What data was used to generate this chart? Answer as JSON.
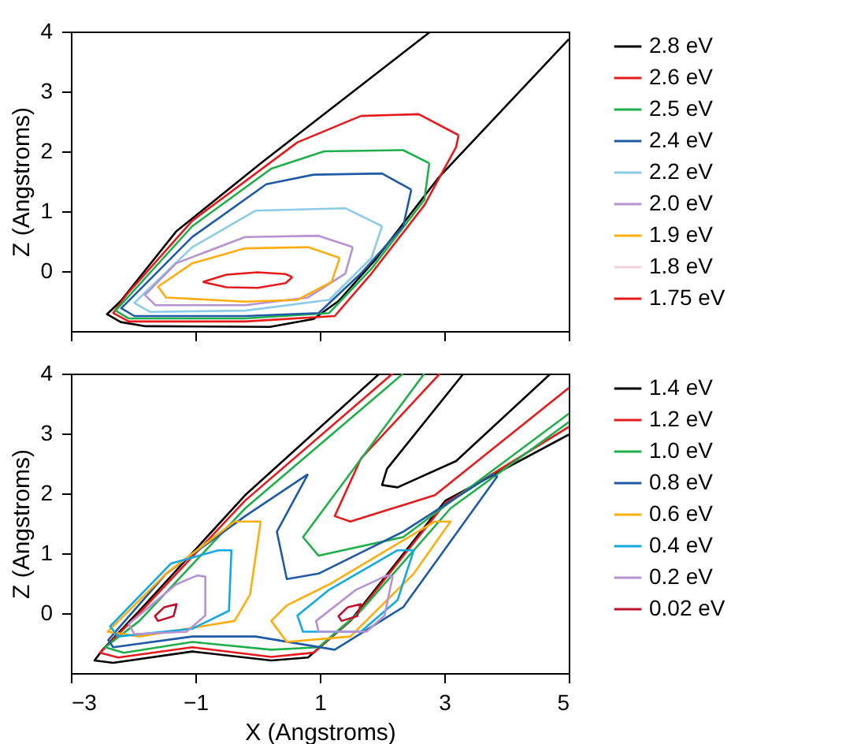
{
  "chart_data": [
    {
      "type": "line",
      "ylabel": "Z (Angstroms)",
      "xlim": [
        -3,
        5
      ],
      "xticks": [
        -3,
        -1,
        1,
        3,
        5
      ],
      "ylim": [
        -1,
        4
      ],
      "yticks": [
        0,
        1,
        2,
        3,
        4
      ],
      "tick_labels": "y",
      "legend": "right",
      "series": [
        {
          "name": "2.8 eV",
          "color": "#000000",
          "x": [
            2.78,
            0.05,
            -1.31,
            -2.2,
            -2.42,
            -2.2,
            -1.8,
            0.2,
            0.9,
            1.3,
            1.9,
            2.9,
            5
          ],
          "values": [
            4,
            1.8,
            0.66,
            -0.5,
            -0.72,
            -0.85,
            -0.92,
            -0.93,
            -0.8,
            -0.5,
            0.2,
            1.55,
            3.87
          ]
        },
        {
          "name": "2.6 eV",
          "color": "#e41a1c",
          "x": [
            1.66,
            2.59,
            3.23,
            null,
            3.23,
            3.19,
            2.68,
            1.83,
            1.24,
            -0.2,
            -2.07,
            -2.32,
            -2.11,
            -1.05,
            0.64,
            1.66
          ],
          "values": [
            2.59,
            2.62,
            2.27,
            null,
            2.27,
            2.07,
            1.1,
            -0.04,
            -0.75,
            -0.84,
            -0.84,
            -0.7,
            -0.4,
            0.84,
            2.15,
            2.59
          ]
        },
        {
          "name": "2.5 eV",
          "color": "#1faf4a",
          "x": [
            1.07,
            2.34,
            2.76,
            null,
            2.76,
            2.68,
            1.83,
            1.15,
            -0.2,
            -2.07,
            -2.28,
            -1.05,
            0.22,
            1.07
          ],
          "values": [
            2.0,
            2.02,
            1.8,
            null,
            1.8,
            1.19,
            0.04,
            -0.7,
            -0.79,
            -0.79,
            -0.66,
            0.75,
            1.71,
            2.0
          ]
        },
        {
          "name": "2.4 eV",
          "color": "#1f5aa6",
          "x": [
            0.9,
            2.0,
            2.47,
            null,
            2.47,
            2.34,
            1.66,
            0.98,
            -0.2,
            -1.98,
            -2.19,
            -1.05,
            0.14,
            0.9
          ],
          "values": [
            1.61,
            1.63,
            1.36,
            null,
            1.36,
            0.75,
            -0.04,
            -0.7,
            -0.75,
            -0.75,
            -0.62,
            0.57,
            1.45,
            1.61
          ]
        },
        {
          "name": "2.2 eV",
          "color": "#8ccbe6",
          "x": [
            -0.03,
            1.41,
            2.0,
            null,
            2.0,
            1.83,
            1.15,
            -0.2,
            -1.73,
            -1.98,
            -1.05,
            -0.03
          ],
          "values": [
            1.01,
            1.05,
            0.75,
            null,
            0.75,
            0.22,
            -0.48,
            -0.66,
            -0.68,
            -0.53,
            0.4,
            1.01
          ]
        },
        {
          "name": "2.0 eV",
          "color": "#b592d1",
          "x": [
            -0.2,
            0.98,
            1.53,
            null,
            1.53,
            1.41,
            0.81,
            -0.2,
            -1.64,
            -1.81,
            -1.31,
            -0.2
          ],
          "values": [
            0.57,
            0.59,
            0.4,
            null,
            0.4,
            -0.04,
            -0.44,
            -0.57,
            -0.57,
            -0.4,
            0.13,
            0.57
          ]
        },
        {
          "name": "1.9 eV",
          "color": "#ffac0f",
          "x": [
            -0.2,
            0.81,
            1.32,
            null,
            1.32,
            1.19,
            0.64,
            -0.2,
            -1.47,
            -1.6,
            -1.05,
            -0.2
          ],
          "values": [
            0.38,
            0.4,
            0.22,
            null,
            0.22,
            -0.18,
            -0.48,
            -0.51,
            -0.44,
            -0.26,
            0.13,
            0.38
          ]
        },
        {
          "name": "1.8 eV",
          "color": "#f0d3dc"
        },
        {
          "name": "1.75 eV",
          "color": "#e41a1c",
          "x": [
            -0.88,
            -0.5,
            0,
            0.45,
            0.56,
            null,
            0.56,
            0.45,
            0,
            -0.5,
            -0.88
          ],
          "values": [
            -0.18,
            -0.06,
            -0.02,
            -0.05,
            -0.1,
            null,
            -0.1,
            -0.2,
            -0.28,
            -0.27,
            -0.18
          ]
        }
      ]
    },
    {
      "type": "line",
      "xlabel": "X (Angstroms)",
      "ylabel": "Z (Angstroms)",
      "xlim": [
        -3,
        5
      ],
      "xticks": [
        -3,
        -1,
        1,
        3,
        5
      ],
      "ylim": [
        -1,
        4
      ],
      "yticks": [
        0,
        1,
        2,
        3,
        4
      ],
      "legend": "right",
      "series": [
        {
          "name": "1.4 eV",
          "color": "#000000",
          "x": [
            1.96,
            -0.2,
            -1.9,
            -2.49,
            -2.62,
            -2.32,
            -1.05,
            0.22,
            0.81,
            1.49,
            3.02,
            5,
            null,
            3.31,
            2.08,
            2.0,
            2.25,
            3.19,
            4.71
          ],
          "values": [
            4,
            1.97,
            0.04,
            -0.61,
            -0.79,
            -0.83,
            -0.64,
            -0.79,
            -0.74,
            -0.13,
            1.88,
            2.98,
            null,
            4,
            2.41,
            2.14,
            2.1,
            2.54,
            4
          ]
        },
        {
          "name": "1.2 eV",
          "color": "#e41a1c",
          "x": [
            2.17,
            -0.2,
            -1.9,
            -2.53,
            -2.24,
            -1.05,
            0.22,
            0.9,
            1.58,
            3.02,
            5,
            null,
            2.93,
            1.66,
            1.24,
            1.49,
            2.85,
            5
          ],
          "values": [
            4,
            1.88,
            0,
            -0.66,
            -0.74,
            -0.57,
            -0.73,
            -0.66,
            -0.04,
            1.84,
            3.11,
            null,
            4,
            2.58,
            1.62,
            1.53,
            1.97,
            3.76
          ]
        },
        {
          "name": "1.0 eV",
          "color": "#1faf4a",
          "x": [
            2.34,
            -0.2,
            -1.9,
            -2.45,
            -2.15,
            -1.05,
            0.22,
            0.98,
            1.66,
            3.1,
            5,
            null,
            2.68,
            0.73,
            0.98,
            2.34,
            5
          ],
          "values": [
            4,
            1.75,
            -0.13,
            -0.57,
            -0.66,
            -0.48,
            -0.61,
            -0.57,
            0.04,
            1.75,
            3.19,
            null,
            4,
            1.27,
            0.96,
            1.27,
            3.33
          ]
        },
        {
          "name": "0.8 eV",
          "color": "#1f5aa6",
          "x": [
            0.81,
            0.31,
            0.47,
            0.98,
            2.34,
            3.78,
            null,
            3.78,
            3.85,
            2.34,
            1.24,
            -0.03,
            -1.05,
            -2.32,
            -2.4,
            -1.47,
            -0.2,
            0.81
          ],
          "values": [
            2.32,
            1.36,
            0.57,
            0.66,
            1.36,
            2.32,
            null,
            2.32,
            2.28,
            0.1,
            -0.61,
            -0.39,
            -0.39,
            -0.57,
            -0.45,
            0.66,
            1.62,
            2.32
          ]
        },
        {
          "name": "0.6 eV",
          "color": "#ffac0f",
          "x": [
            0.05,
            -0.12,
            -0.37,
            -1.9,
            -2.41,
            -1.47,
            -0.37,
            0.05,
            null,
            3.1,
            2.51,
            1.49,
            0.47,
            0.22,
            0.47,
            1.15,
            2.85,
            3.1
          ],
          "values": [
            1.53,
            0.31,
            -0.13,
            -0.39,
            -0.31,
            0.66,
            1.53,
            1.53,
            null,
            1.53,
            0.66,
            -0.39,
            -0.48,
            -0.13,
            0.13,
            0.48,
            1.53,
            1.53
          ]
        },
        {
          "name": "0.4 eV",
          "color": "#12a9e0",
          "x": [
            -0.42,
            -0.46,
            -1.05,
            -2.24,
            -2.37,
            -1.39,
            -0.63,
            -0.42,
            null,
            2.51,
            2.25,
            1.66,
            0.73,
            0.64,
            1.15,
            2.25,
            2.51
          ],
          "values": [
            1.05,
            0.04,
            -0.26,
            -0.39,
            -0.22,
            0.83,
            1.05,
            1.05,
            null,
            1.05,
            0.22,
            -0.31,
            -0.31,
            -0.04,
            0.39,
            1.05,
            1.05
          ]
        },
        {
          "name": "0.2 eV",
          "color": "#b592d1",
          "x": [
            -0.84,
            -0.84,
            -1.14,
            -1.98,
            -2.07,
            -1.31,
            -0.97,
            -0.84,
            null,
            2.17,
            2.04,
            1.75,
            0.98,
            0.94,
            1.58,
            2.08,
            2.17
          ],
          "values": [
            0.61,
            -0.04,
            -0.31,
            -0.35,
            -0.18,
            0.48,
            0.63,
            0.61,
            null,
            0.61,
            -0.04,
            -0.31,
            -0.31,
            -0.13,
            0.39,
            0.63,
            0.61
          ]
        },
        {
          "name": "0.02 eV",
          "color": "#c0102a",
          "x": [
            -1.3,
            -1.35,
            -1.6,
            -1.65,
            -1.5,
            -1.3,
            null,
            1.66,
            1.6,
            1.35,
            1.3,
            1.45,
            1.66
          ],
          "values": [
            0.15,
            -0.05,
            -0.13,
            -0.05,
            0.1,
            0.15,
            null,
            0.15,
            -0.05,
            -0.13,
            -0.05,
            0.1,
            0.15
          ]
        }
      ]
    }
  ]
}
